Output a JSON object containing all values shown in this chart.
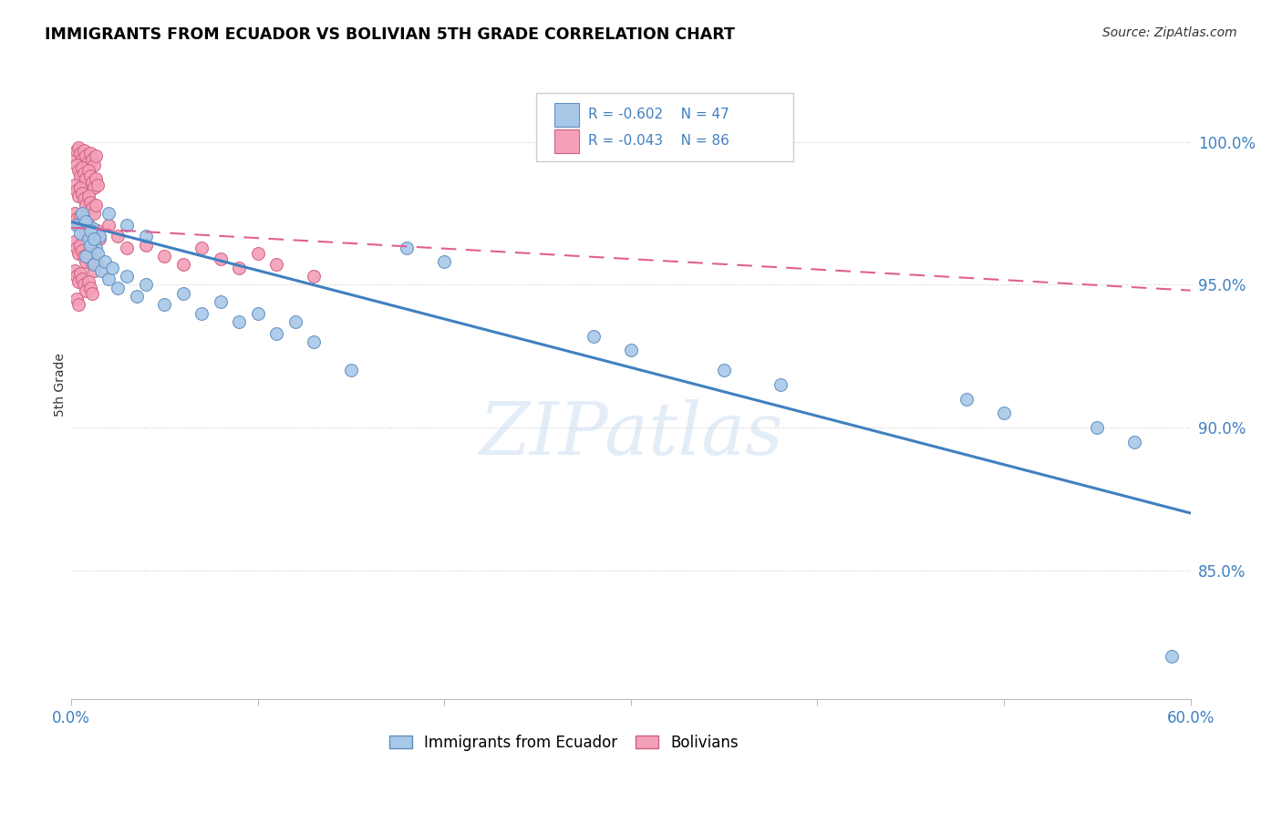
{
  "title": "IMMIGRANTS FROM ECUADOR VS BOLIVIAN 5TH GRADE CORRELATION CHART",
  "source": "Source: ZipAtlas.com",
  "ylabel": "5th Grade",
  "ytick_labels": [
    "100.0%",
    "95.0%",
    "90.0%",
    "85.0%"
  ],
  "ytick_values": [
    1.0,
    0.95,
    0.9,
    0.85
  ],
  "xlim": [
    0.0,
    0.6
  ],
  "ylim": [
    0.805,
    1.025
  ],
  "watermark": "ZIPatlas",
  "legend_r_blue": "R = -0.602",
  "legend_n_blue": "N = 47",
  "legend_r_pink": "R = -0.043",
  "legend_n_pink": "N = 86",
  "legend_label_blue": "Immigrants from Ecuador",
  "legend_label_pink": "Bolivians",
  "blue_color": "#A8C8E8",
  "pink_color": "#F4A0B8",
  "blue_edge_color": "#6090C0",
  "pink_edge_color": "#D06080",
  "blue_line_color": "#4080C0",
  "pink_line_color": "#E06090",
  "stat_color": "#4080C0",
  "blue_scatter": [
    [
      0.003,
      0.971
    ],
    [
      0.005,
      0.968
    ],
    [
      0.007,
      0.973
    ],
    [
      0.009,
      0.966
    ],
    [
      0.011,
      0.97
    ],
    [
      0.013,
      0.963
    ],
    [
      0.015,
      0.967
    ],
    [
      0.008,
      0.96
    ],
    [
      0.01,
      0.964
    ],
    [
      0.012,
      0.957
    ],
    [
      0.014,
      0.961
    ],
    [
      0.016,
      0.955
    ],
    [
      0.018,
      0.958
    ],
    [
      0.02,
      0.952
    ],
    [
      0.022,
      0.956
    ],
    [
      0.025,
      0.949
    ],
    [
      0.03,
      0.953
    ],
    [
      0.035,
      0.946
    ],
    [
      0.04,
      0.95
    ],
    [
      0.006,
      0.975
    ],
    [
      0.008,
      0.972
    ],
    [
      0.01,
      0.969
    ],
    [
      0.012,
      0.966
    ],
    [
      0.05,
      0.943
    ],
    [
      0.06,
      0.947
    ],
    [
      0.07,
      0.94
    ],
    [
      0.08,
      0.944
    ],
    [
      0.09,
      0.937
    ],
    [
      0.1,
      0.94
    ],
    [
      0.11,
      0.933
    ],
    [
      0.12,
      0.937
    ],
    [
      0.13,
      0.93
    ],
    [
      0.02,
      0.975
    ],
    [
      0.03,
      0.971
    ],
    [
      0.04,
      0.967
    ],
    [
      0.18,
      0.963
    ],
    [
      0.2,
      0.958
    ],
    [
      0.28,
      0.932
    ],
    [
      0.3,
      0.927
    ],
    [
      0.35,
      0.92
    ],
    [
      0.38,
      0.915
    ],
    [
      0.48,
      0.91
    ],
    [
      0.5,
      0.905
    ],
    [
      0.55,
      0.9
    ],
    [
      0.57,
      0.895
    ],
    [
      0.59,
      0.82
    ],
    [
      0.15,
      0.92
    ]
  ],
  "pink_scatter": [
    [
      0.002,
      0.995
    ],
    [
      0.003,
      0.997
    ],
    [
      0.004,
      0.998
    ],
    [
      0.005,
      0.996
    ],
    [
      0.006,
      0.994
    ],
    [
      0.007,
      0.997
    ],
    [
      0.008,
      0.995
    ],
    [
      0.009,
      0.993
    ],
    [
      0.01,
      0.996
    ],
    [
      0.011,
      0.994
    ],
    [
      0.012,
      0.992
    ],
    [
      0.013,
      0.995
    ],
    [
      0.003,
      0.992
    ],
    [
      0.004,
      0.99
    ],
    [
      0.005,
      0.988
    ],
    [
      0.006,
      0.991
    ],
    [
      0.007,
      0.989
    ],
    [
      0.008,
      0.987
    ],
    [
      0.009,
      0.99
    ],
    [
      0.01,
      0.988
    ],
    [
      0.011,
      0.986
    ],
    [
      0.012,
      0.984
    ],
    [
      0.013,
      0.987
    ],
    [
      0.014,
      0.985
    ],
    [
      0.002,
      0.985
    ],
    [
      0.003,
      0.983
    ],
    [
      0.004,
      0.981
    ],
    [
      0.005,
      0.984
    ],
    [
      0.006,
      0.982
    ],
    [
      0.007,
      0.98
    ],
    [
      0.008,
      0.978
    ],
    [
      0.009,
      0.981
    ],
    [
      0.01,
      0.979
    ],
    [
      0.011,
      0.977
    ],
    [
      0.012,
      0.975
    ],
    [
      0.013,
      0.978
    ],
    [
      0.002,
      0.975
    ],
    [
      0.003,
      0.973
    ],
    [
      0.004,
      0.971
    ],
    [
      0.005,
      0.974
    ],
    [
      0.006,
      0.972
    ],
    [
      0.007,
      0.97
    ],
    [
      0.008,
      0.968
    ],
    [
      0.009,
      0.971
    ],
    [
      0.01,
      0.969
    ],
    [
      0.011,
      0.967
    ],
    [
      0.012,
      0.965
    ],
    [
      0.013,
      0.968
    ],
    [
      0.002,
      0.965
    ],
    [
      0.003,
      0.963
    ],
    [
      0.004,
      0.961
    ],
    [
      0.005,
      0.964
    ],
    [
      0.006,
      0.962
    ],
    [
      0.007,
      0.96
    ],
    [
      0.008,
      0.958
    ],
    [
      0.009,
      0.961
    ],
    [
      0.01,
      0.959
    ],
    [
      0.011,
      0.957
    ],
    [
      0.012,
      0.955
    ],
    [
      0.013,
      0.958
    ],
    [
      0.002,
      0.955
    ],
    [
      0.003,
      0.953
    ],
    [
      0.004,
      0.951
    ],
    [
      0.005,
      0.954
    ],
    [
      0.006,
      0.952
    ],
    [
      0.007,
      0.95
    ],
    [
      0.008,
      0.948
    ],
    [
      0.009,
      0.951
    ],
    [
      0.01,
      0.949
    ],
    [
      0.011,
      0.947
    ],
    [
      0.014,
      0.969
    ],
    [
      0.015,
      0.966
    ],
    [
      0.02,
      0.971
    ],
    [
      0.025,
      0.967
    ],
    [
      0.03,
      0.963
    ],
    [
      0.04,
      0.964
    ],
    [
      0.05,
      0.96
    ],
    [
      0.06,
      0.957
    ],
    [
      0.07,
      0.963
    ],
    [
      0.08,
      0.959
    ],
    [
      0.09,
      0.956
    ],
    [
      0.1,
      0.961
    ],
    [
      0.11,
      0.957
    ],
    [
      0.13,
      0.953
    ],
    [
      0.003,
      0.945
    ],
    [
      0.004,
      0.943
    ]
  ],
  "blue_trendline_x": [
    0.0,
    0.6
  ],
  "blue_trendline_y": [
    0.972,
    0.87
  ],
  "pink_trendline_x": [
    0.0,
    0.6
  ],
  "pink_trendline_y": [
    0.97,
    0.948
  ],
  "background_color": "#FFFFFF",
  "grid_color": "#CCCCCC"
}
